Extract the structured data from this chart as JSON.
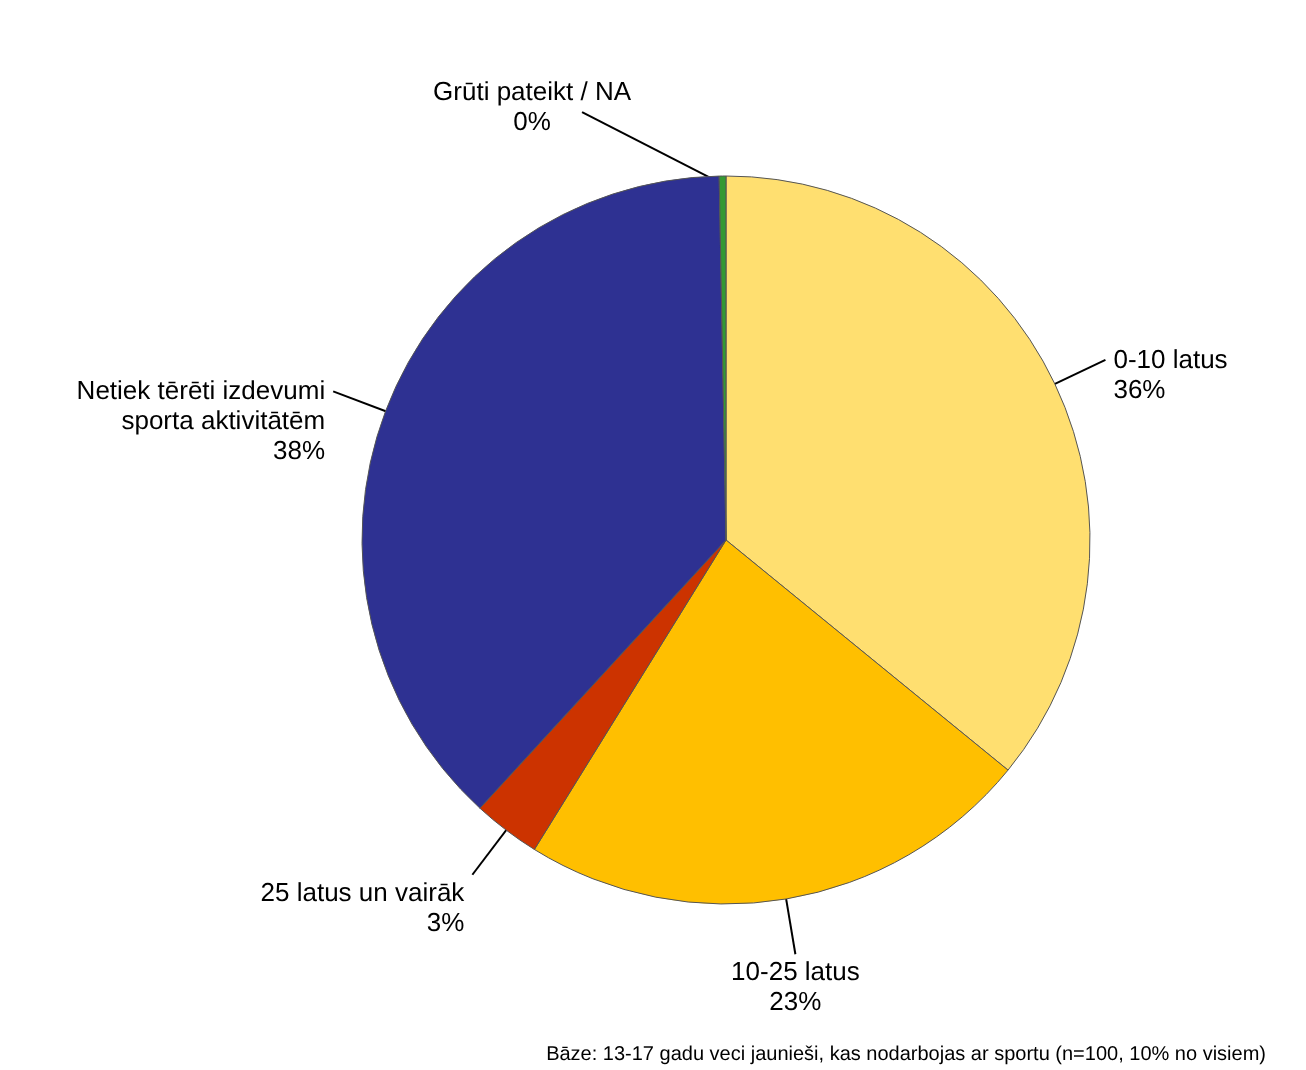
{
  "chart_data": {
    "type": "pie",
    "categories": [
      "0-10 latus",
      "10-25 latus",
      "25 latus un vairāk",
      "Netiek tērēti izdevumi sporta aktivitātēm",
      "Grūti pateikt / NA"
    ],
    "values": [
      36,
      23,
      3,
      38,
      0.3
    ],
    "value_labels": [
      "36%",
      "23%",
      "3%",
      "38%",
      "0%"
    ],
    "colors": [
      "#ffdf70",
      "#ffbf00",
      "#cc3300",
      "#2e3192",
      "#339933"
    ],
    "annotations": [
      "Bāze: 13-17 gadu veci jaunieši, kas nodarbojas ar sportu  (n=100, 10% no visiem)"
    ]
  }
}
